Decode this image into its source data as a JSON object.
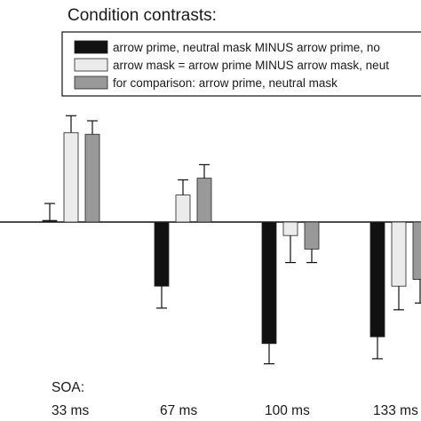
{
  "chart_data": {
    "type": "bar",
    "title": "Condition contrasts:",
    "x_axis_prefix": "SOA:",
    "categories": [
      "33 ms",
      "67 ms",
      "100 ms",
      "133 ms"
    ],
    "series": [
      {
        "name": "arrow prime, neutral mask MINUS arrow prime, no",
        "color": "#111111",
        "values": [
          0.5,
          -19,
          -36,
          -34
        ],
        "errors": [
          5,
          6.5,
          6,
          6.5
        ]
      },
      {
        "name": "arrow mask = arrow prime MINUS arrow mask, neut",
        "color": "#ebebeb",
        "values": [
          26.5,
          8,
          -4,
          -19
        ],
        "errors": [
          5,
          4.5,
          8,
          7
        ]
      },
      {
        "name": "for comparison: arrow prime, neutral mask",
        "color": "#999999",
        "values": [
          26,
          13,
          -8,
          -17
        ],
        "errors": [
          4,
          4,
          4,
          7
        ]
      }
    ],
    "zero_line": true,
    "grid": false,
    "legend_position": "top-right"
  }
}
